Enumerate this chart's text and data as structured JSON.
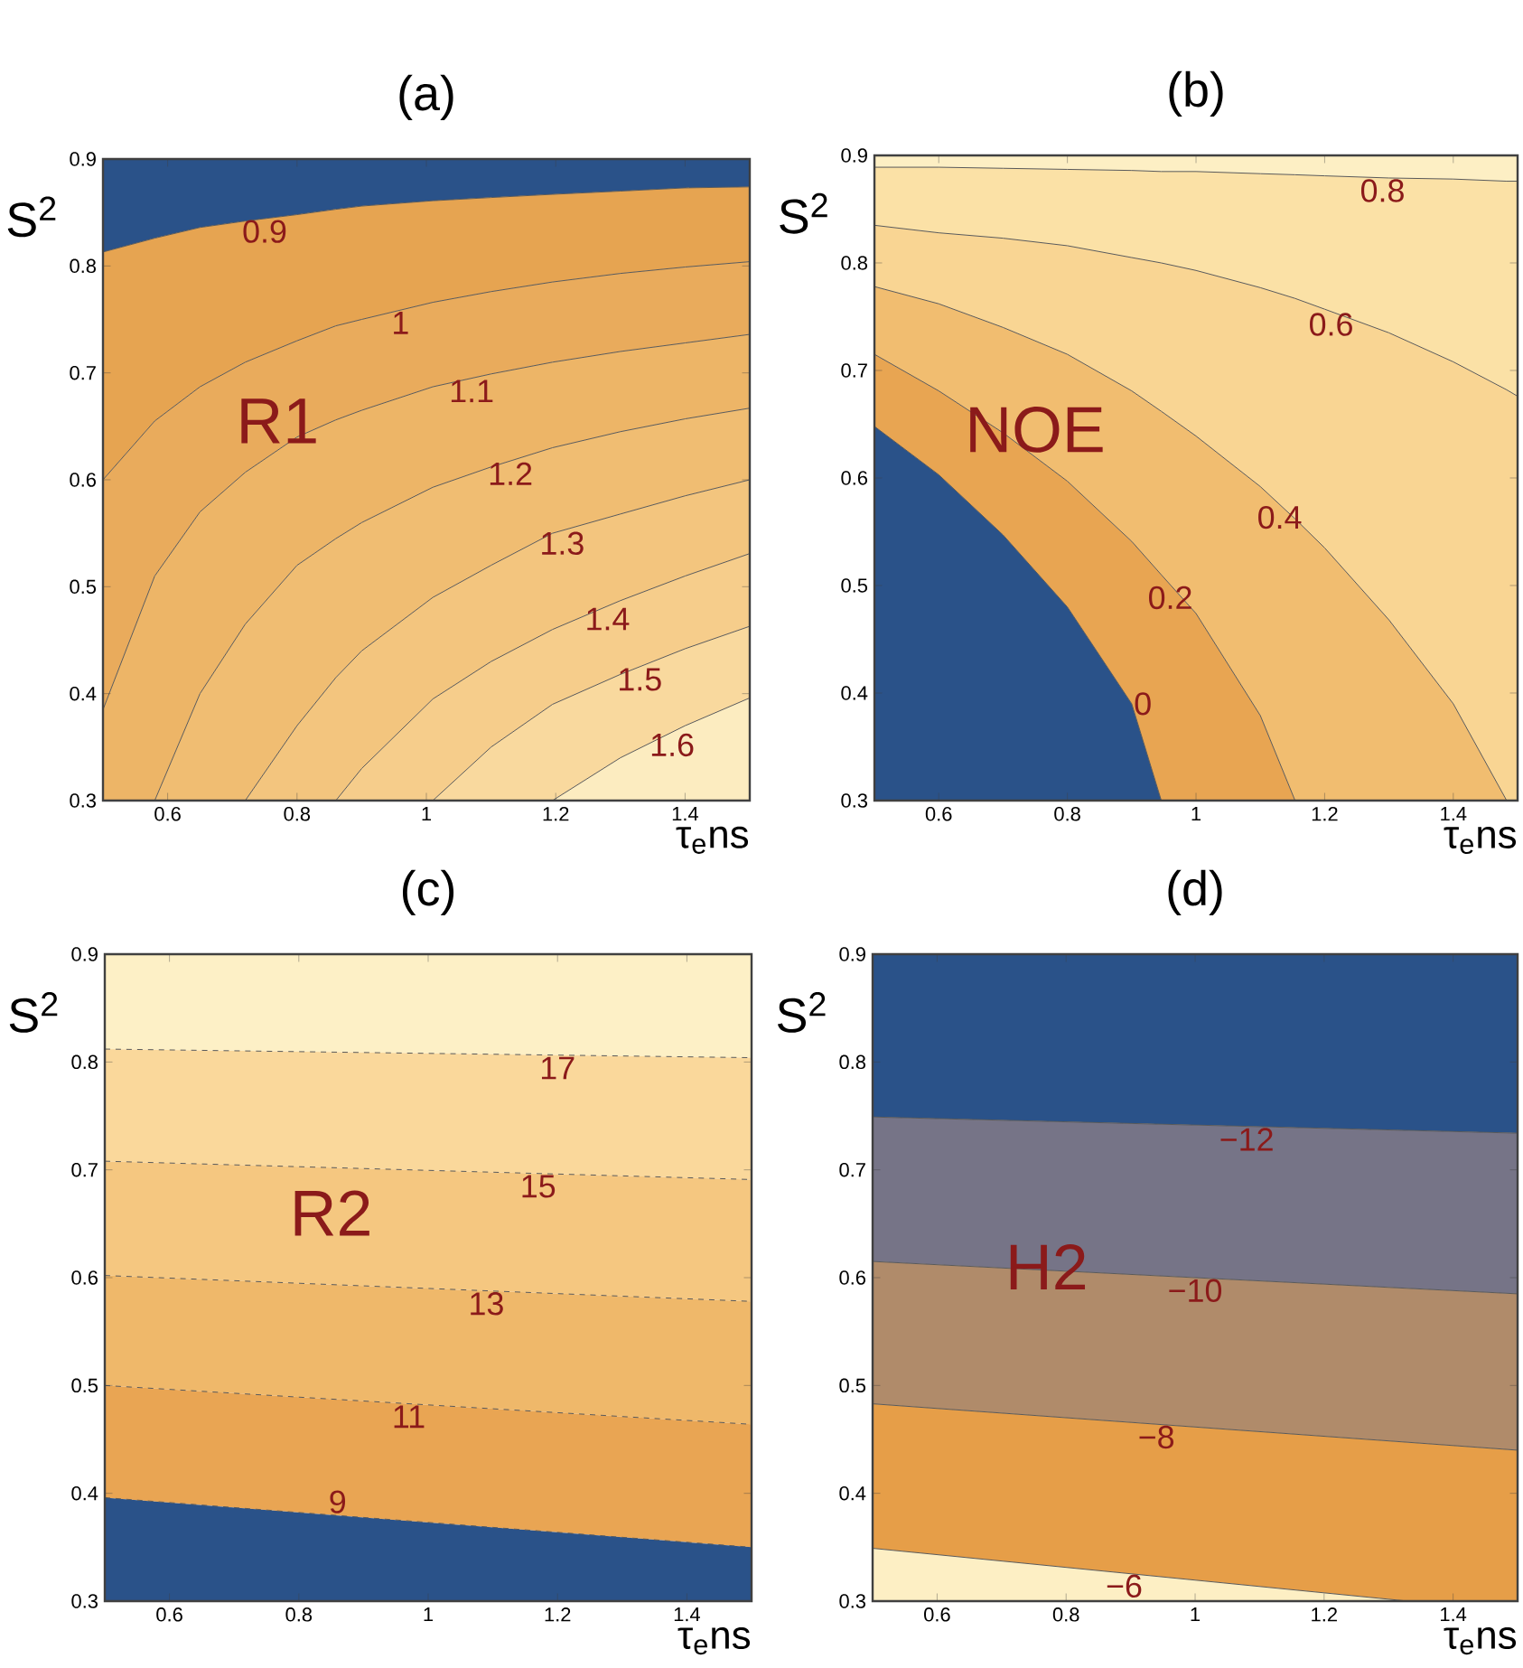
{
  "chart_data": [
    {
      "type": "area",
      "title": "(a)",
      "xlabel": "τ$_{e}$ns",
      "ylabel": "S$^{2}$",
      "xlim": [
        0.5,
        1.5
      ],
      "ylim": [
        0.3,
        0.9
      ],
      "xticks": [
        0.6,
        0.8,
        1,
        1.2,
        1.4
      ],
      "yticks": [
        0.3,
        0.4,
        0.5,
        0.6,
        0.7,
        0.8,
        0.9
      ],
      "line_style": "solid",
      "annotations": [
        "R1"
      ],
      "series": [
        {
          "color": "#2a5289",
          "x": [
            0.5,
            0.58,
            0.65,
            0.72,
            0.8,
            0.86,
            0.9,
            1.01,
            1.1,
            1.195,
            1.3,
            1.4,
            1.5
          ],
          "values": [
            0.9,
            0.9,
            0.9,
            0.9,
            0.9,
            0.9,
            0.9,
            0.9,
            0.9,
            0.9,
            0.9,
            0.9,
            0.9
          ]
        },
        {
          "name": "0.9",
          "color": "#e6a451",
          "x": [
            0.5,
            0.58,
            0.65,
            0.72,
            0.8,
            0.86,
            0.9,
            1.01,
            1.1,
            1.195,
            1.3,
            1.4,
            1.5
          ],
          "values": [
            0.813,
            0.826,
            0.836,
            0.842,
            0.848,
            0.853,
            0.856,
            0.861,
            0.864,
            0.867,
            0.87,
            0.873,
            0.874
          ]
        },
        {
          "name": "1",
          "color": "#e9ab5c",
          "x": [
            0.5,
            0.58,
            0.65,
            0.72,
            0.8,
            0.86,
            0.9,
            1.01,
            1.1,
            1.195,
            1.3,
            1.4,
            1.5
          ],
          "values": [
            0.6,
            0.655,
            0.687,
            0.71,
            0.73,
            0.744,
            0.75,
            0.766,
            0.776,
            0.785,
            0.793,
            0.799,
            0.804
          ]
        },
        {
          "name": "1.1",
          "color": "#edb567",
          "x": [
            0.5,
            0.58,
            0.65,
            0.72,
            0.8,
            0.86,
            0.9,
            1.01,
            1.1,
            1.195,
            1.3,
            1.4,
            1.5
          ],
          "values": [
            0.385,
            0.51,
            0.57,
            0.607,
            0.64,
            0.656,
            0.665,
            0.687,
            0.699,
            0.71,
            0.72,
            0.728,
            0.736
          ]
        },
        {
          "name": "1.2",
          "color": "#f0bd72",
          "x": [
            0.58,
            0.65,
            0.72,
            0.8,
            0.86,
            0.9,
            1.01,
            1.1,
            1.195,
            1.3,
            1.4,
            1.5
          ],
          "values": [
            0.3,
            0.4,
            0.465,
            0.52,
            0.545,
            0.56,
            0.593,
            0.612,
            0.63,
            0.645,
            0.657,
            0.667
          ]
        },
        {
          "name": "1.3",
          "color": "#f3c57e",
          "x": [
            0.72,
            0.8,
            0.86,
            0.9,
            1.01,
            1.1,
            1.195,
            1.3,
            1.4,
            1.5
          ],
          "values": [
            0.3,
            0.37,
            0.415,
            0.44,
            0.49,
            0.52,
            0.55,
            0.568,
            0.585,
            0.6
          ]
        },
        {
          "name": "1.4",
          "color": "#f6cd8b",
          "x": [
            0.86,
            0.9,
            1.01,
            1.1,
            1.195,
            1.3,
            1.4,
            1.5
          ],
          "values": [
            0.3,
            0.33,
            0.395,
            0.43,
            0.46,
            0.487,
            0.51,
            0.531
          ]
        },
        {
          "name": "1.5",
          "color": "#f9d99e",
          "x": [
            1.01,
            1.1,
            1.195,
            1.3,
            1.4,
            1.5
          ],
          "values": [
            0.3,
            0.35,
            0.39,
            0.418,
            0.442,
            0.463
          ]
        },
        {
          "name": "1.6",
          "color": "#fcecc0",
          "x": [
            1.195,
            1.3,
            1.4,
            1.5
          ],
          "values": [
            0.3,
            0.34,
            0.37,
            0.396
          ]
        }
      ]
    },
    {
      "type": "area",
      "title": "(b)",
      "xlabel": "τ$_{e}$ns",
      "ylabel": "S$^{2}$",
      "xlim": [
        0.5,
        1.5
      ],
      "ylim": [
        0.3,
        0.9
      ],
      "xticks": [
        0.6,
        0.8,
        1,
        1.2,
        1.4
      ],
      "yticks": [
        0.3,
        0.4,
        0.5,
        0.6,
        0.7,
        0.8,
        0.9
      ],
      "line_style": "solid",
      "annotations": [
        "NOE"
      ],
      "series": [
        {
          "color": "#fdefc4",
          "x": [
            0.5,
            0.6,
            0.7,
            0.8,
            0.9,
            0.946,
            1.0,
            1.1,
            1.154,
            1.2,
            1.3,
            1.4,
            1.483,
            1.5
          ],
          "values": [
            0.9,
            0.9,
            0.9,
            0.9,
            0.9,
            0.9,
            0.9,
            0.9,
            0.9,
            0.9,
            0.9,
            0.9,
            0.9,
            0.9
          ]
        },
        {
          "name": "0.8",
          "color": "#fbe1a6",
          "x": [
            0.5,
            0.6,
            0.7,
            0.8,
            0.9,
            0.946,
            1.0,
            1.1,
            1.154,
            1.2,
            1.3,
            1.4,
            1.483,
            1.5
          ],
          "values": [
            0.889,
            0.889,
            0.888,
            0.887,
            0.886,
            0.885,
            0.885,
            0.883,
            0.882,
            0.881,
            0.879,
            0.878,
            0.876,
            0.876
          ]
        },
        {
          "name": "0.6",
          "color": "#f9d593",
          "x": [
            0.5,
            0.6,
            0.7,
            0.8,
            0.9,
            0.946,
            1.0,
            1.1,
            1.154,
            1.2,
            1.3,
            1.4,
            1.483,
            1.5
          ],
          "values": [
            0.835,
            0.828,
            0.823,
            0.816,
            0.805,
            0.8,
            0.793,
            0.777,
            0.767,
            0.757,
            0.735,
            0.708,
            0.682,
            0.676
          ]
        },
        {
          "name": "0.4",
          "color": "#f1bd70",
          "x": [
            0.5,
            0.6,
            0.7,
            0.8,
            0.9,
            0.946,
            1.0,
            1.1,
            1.154,
            1.2,
            1.3,
            1.4,
            1.483
          ],
          "values": [
            0.778,
            0.762,
            0.74,
            0.715,
            0.681,
            0.662,
            0.639,
            0.592,
            0.562,
            0.535,
            0.468,
            0.39,
            0.3
          ]
        },
        {
          "name": "0.2",
          "color": "#e8a552",
          "x": [
            0.5,
            0.6,
            0.7,
            0.8,
            0.9,
            0.946,
            1.0,
            1.1,
            1.154
          ],
          "values": [
            0.715,
            0.681,
            0.642,
            0.597,
            0.541,
            0.51,
            0.474,
            0.379,
            0.3
          ]
        },
        {
          "name": "0",
          "color": "#2a5289",
          "x": [
            0.5,
            0.6,
            0.7,
            0.8,
            0.9,
            0.946
          ],
          "values": [
            0.648,
            0.603,
            0.547,
            0.48,
            0.39,
            0.3
          ]
        }
      ]
    },
    {
      "type": "area",
      "title": "(c)",
      "xlabel": "τ$_{e}$ns",
      "ylabel": "S$^{2}$",
      "xlim": [
        0.5,
        1.5
      ],
      "ylim": [
        0.3,
        0.9
      ],
      "xticks": [
        0.6,
        0.8,
        1,
        1.2,
        1.4
      ],
      "yticks": [
        0.3,
        0.4,
        0.5,
        0.6,
        0.7,
        0.8,
        0.9
      ],
      "line_style": "dashed",
      "annotations": [
        "R2"
      ],
      "series": [
        {
          "color": "#fdf0c6",
          "x": [
            0.5,
            1.5
          ],
          "values": [
            0.9,
            0.9
          ]
        },
        {
          "name": "17",
          "color": "#fad89b",
          "x": [
            0.5,
            1.5
          ],
          "values": [
            0.812,
            0.804
          ]
        },
        {
          "name": "15",
          "color": "#f5c780",
          "x": [
            0.5,
            1.5
          ],
          "values": [
            0.708,
            0.691
          ]
        },
        {
          "name": "13",
          "color": "#efb86a",
          "x": [
            0.5,
            1.5
          ],
          "values": [
            0.602,
            0.578
          ]
        },
        {
          "name": "11",
          "color": "#e9a553",
          "x": [
            0.5,
            1.5
          ],
          "values": [
            0.5,
            0.464
          ]
        },
        {
          "name": "9",
          "color": "#2a5289",
          "x": [
            0.5,
            1.5
          ],
          "values": [
            0.396,
            0.35
          ]
        }
      ]
    },
    {
      "type": "area",
      "title": "(d)",
      "xlabel": "τ$_{e}$ns",
      "ylabel": "S$^{2}$",
      "xlim": [
        0.5,
        1.5
      ],
      "ylim": [
        0.3,
        0.9
      ],
      "xticks": [
        0.6,
        0.8,
        1,
        1.2,
        1.4
      ],
      "yticks": [
        0.3,
        0.4,
        0.5,
        0.6,
        0.7,
        0.8,
        0.9
      ],
      "line_style": "solid",
      "annotations": [
        "H2"
      ],
      "series": [
        {
          "color": "#2a5289",
          "x": [
            0.5,
            1.5
          ],
          "values": [
            0.9,
            0.9
          ]
        },
        {
          "name": "−12",
          "color": "#767487",
          "x": [
            0.5,
            1.5
          ],
          "values": [
            0.749,
            0.734
          ]
        },
        {
          "name": "−10",
          "color": "#b08b6a",
          "x": [
            0.5,
            1.5
          ],
          "values": [
            0.615,
            0.585
          ]
        },
        {
          "name": "−8",
          "color": "#e69e48",
          "x": [
            0.5,
            1.5
          ],
          "values": [
            0.483,
            0.44
          ]
        },
        {
          "name": "−6",
          "color": "#fdefc4",
          "x": [
            0.5,
            1.33
          ],
          "values": [
            0.349,
            0.3
          ]
        }
      ]
    }
  ]
}
